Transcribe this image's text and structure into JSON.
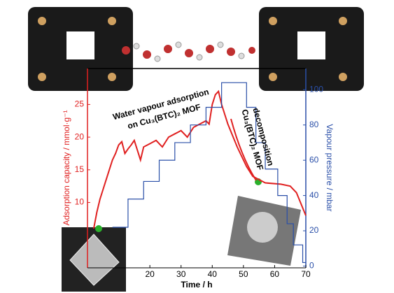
{
  "chart_data": {
    "type": "line",
    "annotations": [
      "Water vapour adsorption",
      "on Cu₃(BTC)₂ MOF",
      "Cu₃(BTC)₂ MOF",
      "decomposition"
    ],
    "xlabel": "Time / h",
    "ylabel": "Adsorption capacity / mmol·g⁻¹",
    "y2label": "Vapour pressure / mbar",
    "xlim": [
      0,
      70
    ],
    "ylim": [
      0,
      30.5
    ],
    "y2lim": [
      -1,
      112
    ],
    "xticks": [
      20,
      30,
      40,
      50,
      60,
      70
    ],
    "yticks": [
      10,
      15,
      20,
      25
    ],
    "y2ticks": [
      0,
      20,
      40,
      60,
      80,
      100
    ],
    "series": [
      {
        "name": "Adsorption capacity",
        "color": "#e02020",
        "x": [
          2,
          3,
          4,
          5,
          6,
          7,
          8,
          9,
          10,
          11,
          12,
          13,
          14,
          15,
          17,
          18,
          20,
          22,
          24,
          26,
          28,
          30,
          32,
          34,
          36,
          38,
          39,
          40,
          41,
          42,
          43,
          45,
          48,
          51,
          53,
          57,
          62,
          65,
          67,
          70
        ],
        "values": [
          6,
          8.5,
          10.5,
          12,
          13.5,
          15,
          16.5,
          17.5,
          18.8,
          19.3,
          17.5,
          18.2,
          18.8,
          19.5,
          16.5,
          18.5,
          19,
          19.5,
          18.5,
          20,
          20.5,
          21,
          20,
          21.5,
          22,
          22.5,
          22,
          25,
          26.5,
          27,
          25,
          22,
          18.5,
          15.5,
          14,
          13,
          12.8,
          12.5,
          11.5,
          8
        ]
      },
      {
        "name": "Vapour pressure",
        "color": "#2a4fa8",
        "axis": "y2",
        "x": [
          8,
          13,
          13,
          18,
          18,
          23,
          23,
          28,
          28,
          33,
          33,
          38,
          38,
          43,
          43,
          51,
          51,
          54,
          54,
          57,
          57,
          61,
          61,
          64,
          64,
          66,
          66,
          69,
          69,
          70
        ],
        "values": [
          22,
          22,
          38,
          38,
          48,
          48,
          60,
          60,
          70,
          70,
          80,
          80,
          90,
          90,
          104,
          104,
          90,
          90,
          70,
          70,
          55,
          55,
          40,
          40,
          24,
          24,
          12,
          12,
          2,
          2
        ]
      }
    ]
  }
}
